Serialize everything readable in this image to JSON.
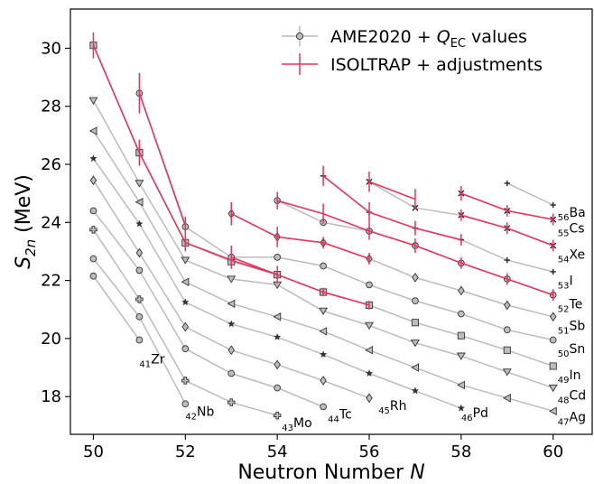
{
  "chart_data": {
    "type": "line",
    "title": "",
    "xlabel": "Neutron Number N",
    "ylabel": "S2n (MeV)",
    "xlim": [
      49.5,
      60.85
    ],
    "ylim": [
      16.7,
      31.35
    ],
    "xticks": [
      50,
      52,
      54,
      56,
      58,
      60
    ],
    "yticks": [
      18,
      20,
      22,
      24,
      26,
      28,
      30
    ],
    "grid": false,
    "legend": {
      "placement": "top-right",
      "entries": [
        {
          "label": "AME2020 + QEC values",
          "color": "#bbbbbb",
          "marker": "circle"
        },
        {
          "label": "ISOLTRAP + adjustments",
          "color": "#e8345c",
          "marker": "none"
        }
      ]
    },
    "series": [
      {
        "element": "Zr",
        "z": "41",
        "label_anchor": [
          51,
          19.3
        ],
        "marker": "circle",
        "points": [
          [
            50,
            22.15
          ],
          [
            51,
            19.95
          ]
        ]
      },
      {
        "element": "Nb",
        "z": "42",
        "label_anchor": [
          52,
          17.5
        ],
        "marker": "circle",
        "points": [
          [
            50,
            22.75
          ],
          [
            51,
            20.75
          ],
          [
            52,
            17.75
          ]
        ]
      },
      {
        "element": "Mo",
        "z": "43",
        "label_anchor": [
          54.1,
          17.1
        ],
        "marker": "plus",
        "points": [
          [
            50,
            23.75
          ],
          [
            51,
            21.35
          ],
          [
            52,
            18.55
          ],
          [
            53,
            17.8
          ],
          [
            54,
            17.35
          ]
        ]
      },
      {
        "element": "Tc",
        "z": "44",
        "label_anchor": [
          55.1,
          17.4
        ],
        "marker": "circle",
        "points": [
          [
            50,
            24.4
          ],
          [
            51,
            22.35
          ],
          [
            52,
            19.65
          ],
          [
            53,
            18.8
          ],
          [
            54,
            18.3
          ],
          [
            55,
            17.65
          ]
        ]
      },
      {
        "element": "Rh",
        "z": "45",
        "label_anchor": [
          56.2,
          17.7
        ],
        "marker": "diamond",
        "points": [
          [
            50,
            25.45
          ],
          [
            51,
            22.95
          ],
          [
            52,
            20.4
          ],
          [
            53,
            19.6
          ],
          [
            54,
            19.1
          ],
          [
            55,
            18.55
          ],
          [
            56,
            17.95
          ]
        ]
      },
      {
        "element": "Pd",
        "z": "46",
        "label_anchor": [
          58,
          17.45
        ],
        "marker": "star",
        "points": [
          [
            50,
            26.2
          ],
          [
            51,
            23.95
          ],
          [
            52,
            21.25
          ],
          [
            53,
            20.5
          ],
          [
            54,
            20.05
          ],
          [
            55,
            19.45
          ],
          [
            56,
            18.8
          ],
          [
            57,
            18.2
          ],
          [
            58,
            17.6
          ]
        ]
      },
      {
        "element": "Ag",
        "z": "47",
        "label_anchor": [
          60.1,
          17.3
        ],
        "marker": "triangle-left",
        "points": [
          [
            50,
            27.15
          ],
          [
            51,
            24.7
          ],
          [
            52,
            21.95
          ],
          [
            53,
            21.2
          ],
          [
            54,
            20.75
          ],
          [
            55,
            20.25
          ],
          [
            56,
            19.6
          ],
          [
            57,
            19.0
          ],
          [
            58,
            18.4
          ],
          [
            59,
            17.95
          ],
          [
            60,
            17.5
          ]
        ]
      },
      {
        "element": "Cd",
        "z": "48",
        "label_anchor": [
          60.1,
          18.05
        ],
        "marker": "triangle-down",
        "points": [
          [
            50,
            28.2
          ],
          [
            51,
            25.35
          ],
          [
            52,
            22.7
          ],
          [
            53,
            22.05
          ],
          [
            54,
            21.85
          ],
          [
            55,
            20.95
          ],
          [
            56,
            20.45
          ],
          [
            57,
            19.85
          ],
          [
            58,
            19.4
          ],
          [
            59,
            18.85
          ],
          [
            60,
            18.3
          ]
        ]
      },
      {
        "element": "In",
        "z": "49",
        "label_anchor": [
          60.1,
          18.75
        ],
        "marker": "square",
        "points": [
          [
            50,
            30.1
          ],
          [
            51,
            26.4
          ],
          [
            52,
            23.3
          ],
          [
            53,
            22.65
          ],
          [
            54,
            22.2
          ],
          [
            55,
            21.6
          ],
          [
            56,
            21.15
          ],
          [
            57,
            20.55
          ],
          [
            58,
            20.1
          ],
          [
            59,
            19.6
          ],
          [
            60,
            19.05
          ]
        ]
      },
      {
        "element": "Sn",
        "z": "50",
        "label_anchor": [
          60.1,
          19.65
        ],
        "marker": "circle",
        "points": [
          [
            51,
            28.45
          ],
          [
            52,
            23.85
          ],
          [
            53,
            22.8
          ],
          [
            54,
            22.8
          ],
          [
            55,
            22.5
          ],
          [
            56,
            21.85
          ],
          [
            57,
            21.3
          ],
          [
            58,
            20.85
          ],
          [
            59,
            20.3
          ],
          [
            60,
            19.95
          ]
        ]
      },
      {
        "element": "Sb",
        "z": "51",
        "label_anchor": [
          60.1,
          20.45
        ],
        "marker": "diamond",
        "points": [
          [
            53,
            24.3
          ],
          [
            54,
            23.5
          ],
          [
            55,
            23.3
          ],
          [
            56,
            22.75
          ],
          [
            57,
            22.1
          ],
          [
            58,
            21.65
          ],
          [
            59,
            21.15
          ],
          [
            60,
            20.75
          ]
        ]
      },
      {
        "element": "Te",
        "z": "52",
        "label_anchor": [
          60.1,
          21.2
        ],
        "marker": "circle",
        "points": [
          [
            54,
            24.75
          ],
          [
            55,
            24.0
          ],
          [
            56,
            23.7
          ],
          [
            57,
            23.2
          ],
          [
            58,
            22.6
          ],
          [
            59,
            22.05
          ],
          [
            60,
            21.5
          ]
        ]
      },
      {
        "element": "I",
        "z": "53",
        "label_anchor": [
          60.1,
          22.0
        ],
        "marker": "plus-small",
        "points": [
          [
            55,
            25.6
          ],
          [
            56,
            24.35
          ],
          [
            57,
            23.8
          ],
          [
            58,
            23.4
          ],
          [
            59,
            22.7
          ],
          [
            60,
            22.3
          ]
        ]
      },
      {
        "element": "Xe",
        "z": "54",
        "label_anchor": [
          60.1,
          22.9
        ],
        "marker": "x",
        "points": [
          [
            56,
            25.4
          ],
          [
            57,
            24.5
          ],
          [
            58,
            24.25
          ],
          [
            59,
            23.8
          ],
          [
            60,
            23.2
          ]
        ]
      },
      {
        "element": "Cs",
        "z": "55",
        "label_anchor": [
          60.1,
          23.8
        ],
        "marker": "x",
        "points": [
          [
            58,
            25.0
          ],
          [
            59,
            24.4
          ],
          [
            60,
            24.1
          ]
        ]
      },
      {
        "element": "Ba",
        "z": "56",
        "label_anchor": [
          60.1,
          24.35
        ],
        "marker": "plus-small",
        "points": [
          [
            59,
            25.35
          ],
          [
            60,
            24.6
          ]
        ]
      }
    ],
    "isoltrap": [
      {
        "points": [
          [
            50,
            30.1
          ],
          [
            51,
            26.4
          ],
          [
            52,
            23.3
          ]
        ],
        "err": [
          0.45,
          0.45,
          0.3
        ]
      },
      {
        "points": [
          [
            51,
            28.45
          ],
          [
            52,
            23.9
          ]
        ],
        "err": [
          0.7,
          0.3
        ]
      },
      {
        "points": [
          [
            52,
            23.3
          ],
          [
            53,
            22.7
          ],
          [
            54,
            22.2
          ],
          [
            55,
            21.6
          ],
          [
            56,
            21.15
          ]
        ],
        "err": [
          0.2,
          0.2,
          0.15,
          0.15,
          0.15
        ]
      },
      {
        "points": [
          [
            53,
            24.3
          ],
          [
            54,
            23.5
          ],
          [
            55,
            23.3
          ],
          [
            56,
            22.75
          ]
        ],
        "err": [
          0.4,
          0.35,
          0.2,
          0.2
        ]
      },
      {
        "points": [
          [
            53,
            22.8
          ],
          [
            54,
            22.2
          ]
        ],
        "err": [
          0.4,
          0.3
        ]
      },
      {
        "points": [
          [
            54,
            24.75
          ],
          [
            55,
            24.3
          ],
          [
            56,
            23.7
          ],
          [
            57,
            23.2
          ],
          [
            58,
            22.6
          ],
          [
            59,
            22.05
          ],
          [
            60,
            21.5
          ]
        ],
        "err": [
          0.3,
          0.35,
          0.3,
          0.25,
          0.2,
          0.2,
          0.2
        ]
      },
      {
        "points": [
          [
            55,
            25.6
          ],
          [
            56,
            24.35
          ],
          [
            57,
            23.8
          ],
          [
            58,
            23.4
          ]
        ],
        "err": [
          0.35,
          0.35,
          0.25,
          0.2
        ]
      },
      {
        "points": [
          [
            56,
            25.4
          ],
          [
            57,
            24.8
          ]
        ],
        "err": [
          0.35,
          0.35
        ]
      },
      {
        "points": [
          [
            58,
            25.0
          ],
          [
            59,
            24.4
          ],
          [
            60,
            24.1
          ]
        ],
        "err": [
          0.25,
          0.2,
          0.2
        ]
      },
      {
        "points": [
          [
            58,
            24.25
          ],
          [
            59,
            23.8
          ],
          [
            60,
            23.2
          ]
        ],
        "err": [
          0.2,
          0.2,
          0.2
        ]
      }
    ]
  }
}
